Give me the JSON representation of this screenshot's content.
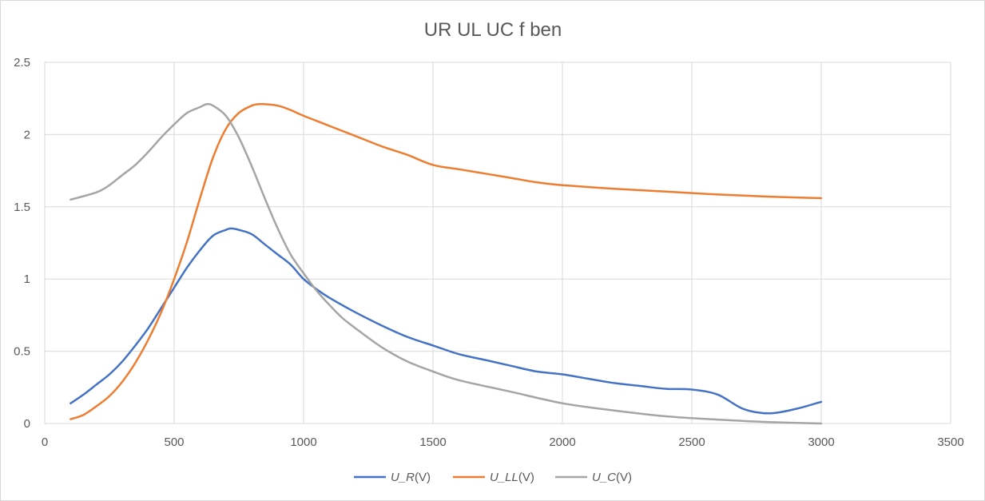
{
  "chart_data": {
    "type": "line",
    "title": "UR UL UC  f ben",
    "xlabel": "",
    "ylabel": "",
    "xlim": [
      0,
      3500
    ],
    "ylim": [
      0,
      2.5
    ],
    "x_ticks": [
      0,
      500,
      1000,
      1500,
      2000,
      2500,
      3000,
      3500
    ],
    "y_ticks": [
      0,
      0.5,
      1,
      1.5,
      2,
      2.5
    ],
    "x_tick_labels": [
      "0",
      "500",
      "1000",
      "1500",
      "2000",
      "2500",
      "3000",
      "3500"
    ],
    "y_tick_labels": [
      "0",
      "0.5",
      "1",
      "1.5",
      "2",
      "2.5"
    ],
    "grid": true,
    "legend_position": "bottom",
    "series": [
      {
        "name": "U_R",
        "unit": "(V)",
        "color": "#4472c4",
        "points": [
          [
            100,
            0.14
          ],
          [
            150,
            0.2
          ],
          [
            200,
            0.27
          ],
          [
            250,
            0.34
          ],
          [
            300,
            0.43
          ],
          [
            350,
            0.54
          ],
          [
            400,
            0.66
          ],
          [
            450,
            0.8
          ],
          [
            500,
            0.94
          ],
          [
            550,
            1.08
          ],
          [
            600,
            1.2
          ],
          [
            650,
            1.3
          ],
          [
            700,
            1.34
          ],
          [
            720,
            1.35
          ],
          [
            750,
            1.34
          ],
          [
            800,
            1.31
          ],
          [
            850,
            1.24
          ],
          [
            900,
            1.17
          ],
          [
            950,
            1.1
          ],
          [
            1000,
            1.0
          ],
          [
            1050,
            0.93
          ],
          [
            1100,
            0.87
          ],
          [
            1200,
            0.77
          ],
          [
            1300,
            0.68
          ],
          [
            1400,
            0.6
          ],
          [
            1500,
            0.54
          ],
          [
            1600,
            0.48
          ],
          [
            1700,
            0.44
          ],
          [
            1800,
            0.4
          ],
          [
            1900,
            0.36
          ],
          [
            2000,
            0.34
          ],
          [
            2100,
            0.31
          ],
          [
            2200,
            0.28
          ],
          [
            2300,
            0.26
          ],
          [
            2400,
            0.24
          ],
          [
            2500,
            0.235
          ],
          [
            2600,
            0.2
          ],
          [
            2700,
            0.1
          ],
          [
            2800,
            0.07
          ],
          [
            2900,
            0.1
          ],
          [
            3000,
            0.15
          ]
        ]
      },
      {
        "name": "U_LL",
        "unit": "(V)",
        "color": "#ed7d31",
        "points": [
          [
            100,
            0.03
          ],
          [
            150,
            0.06
          ],
          [
            200,
            0.12
          ],
          [
            250,
            0.19
          ],
          [
            300,
            0.29
          ],
          [
            350,
            0.42
          ],
          [
            400,
            0.58
          ],
          [
            450,
            0.77
          ],
          [
            500,
            1.0
          ],
          [
            550,
            1.26
          ],
          [
            600,
            1.56
          ],
          [
            650,
            1.84
          ],
          [
            700,
            2.04
          ],
          [
            750,
            2.15
          ],
          [
            800,
            2.2
          ],
          [
            825,
            2.21
          ],
          [
            850,
            2.21
          ],
          [
            900,
            2.2
          ],
          [
            950,
            2.17
          ],
          [
            1000,
            2.13
          ],
          [
            1100,
            2.06
          ],
          [
            1200,
            1.99
          ],
          [
            1300,
            1.92
          ],
          [
            1400,
            1.86
          ],
          [
            1500,
            1.79
          ],
          [
            1600,
            1.76
          ],
          [
            1700,
            1.73
          ],
          [
            1800,
            1.7
          ],
          [
            1900,
            1.67
          ],
          [
            2000,
            1.65
          ],
          [
            2200,
            1.625
          ],
          [
            2400,
            1.605
          ],
          [
            2600,
            1.585
          ],
          [
            2800,
            1.57
          ],
          [
            3000,
            1.56
          ]
        ]
      },
      {
        "name": "U_C",
        "unit": "(V)",
        "color": "#a5a5a5",
        "points": [
          [
            100,
            1.55
          ],
          [
            200,
            1.6
          ],
          [
            250,
            1.65
          ],
          [
            300,
            1.72
          ],
          [
            350,
            1.79
          ],
          [
            400,
            1.88
          ],
          [
            450,
            1.98
          ],
          [
            500,
            2.07
          ],
          [
            550,
            2.15
          ],
          [
            600,
            2.19
          ],
          [
            625,
            2.21
          ],
          [
            650,
            2.2
          ],
          [
            700,
            2.13
          ],
          [
            750,
            1.98
          ],
          [
            800,
            1.78
          ],
          [
            850,
            1.56
          ],
          [
            900,
            1.35
          ],
          [
            950,
            1.17
          ],
          [
            1000,
            1.04
          ],
          [
            1050,
            0.92
          ],
          [
            1100,
            0.82
          ],
          [
            1150,
            0.73
          ],
          [
            1200,
            0.66
          ],
          [
            1300,
            0.53
          ],
          [
            1400,
            0.43
          ],
          [
            1500,
            0.36
          ],
          [
            1600,
            0.3
          ],
          [
            1800,
            0.22
          ],
          [
            2000,
            0.14
          ],
          [
            2200,
            0.09
          ],
          [
            2400,
            0.05
          ],
          [
            2600,
            0.027
          ],
          [
            2800,
            0.01
          ],
          [
            3000,
            0.0
          ]
        ]
      }
    ]
  }
}
